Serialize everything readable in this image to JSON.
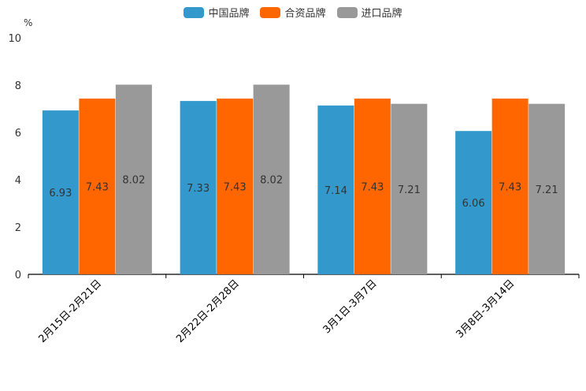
{
  "chart_data": {
    "type": "bar",
    "unit_label": "%",
    "categories": [
      "2月15日-2月21日",
      "2月22日-2月28日",
      "3月1日-3月7日",
      "3月8日-3月14日"
    ],
    "series": [
      {
        "name": "中国品牌",
        "color": "#3399cc",
        "values": [
          6.93,
          7.33,
          7.14,
          6.06
        ]
      },
      {
        "name": "合资品牌",
        "color": "#ff6600",
        "values": [
          7.43,
          7.43,
          7.43,
          7.43
        ]
      },
      {
        "name": "进口品牌",
        "color": "#999999",
        "values": [
          8.02,
          8.02,
          7.21,
          7.21
        ]
      }
    ],
    "ylim": [
      0,
      10
    ],
    "yticks": [
      0,
      2,
      4,
      6,
      8,
      10
    ],
    "legend_position": "top-center",
    "grid": false
  }
}
